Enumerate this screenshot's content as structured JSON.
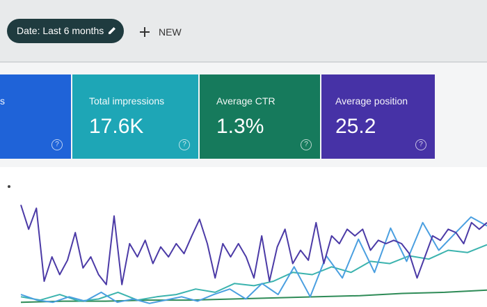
{
  "toolbar": {
    "date_chip": "Date: Last 6 months",
    "new_button": "NEW"
  },
  "metrics": [
    {
      "label": "s"
    },
    {
      "label": "Total impressions",
      "value": "17.6K"
    },
    {
      "label": "Average CTR",
      "value": "1.3%"
    },
    {
      "label": "Average position",
      "value": "25.2"
    }
  ],
  "chart_data": {
    "type": "line",
    "ylim": [
      0,
      100
    ],
    "series": [
      {
        "color": "#4b3aa6",
        "values": [
          91,
          69,
          88,
          22,
          44,
          28,
          41,
          66,
          34,
          44,
          28,
          19,
          81,
          19,
          56,
          44,
          59,
          38,
          53,
          44,
          56,
          47,
          63,
          78,
          56,
          25,
          56,
          44,
          56,
          44,
          25,
          63,
          22,
          53,
          69,
          38,
          50,
          41,
          75,
          38,
          63,
          56,
          69,
          63,
          69,
          50,
          59,
          56,
          59,
          56,
          47,
          25,
          44,
          63,
          59,
          69,
          66,
          56,
          75,
          69,
          75
        ]
      },
      {
        "color": "#4a9fe0",
        "values": [
          10,
          5,
          3,
          8,
          4,
          12,
          3,
          6,
          2,
          5,
          8,
          4,
          10,
          15,
          6,
          20,
          10,
          35,
          8,
          45,
          25,
          60,
          30,
          70,
          40,
          75,
          50,
          65,
          80,
          72
        ]
      },
      {
        "color": "#3bb3ae",
        "values": [
          8,
          5,
          10,
          4,
          6,
          12,
          5,
          8,
          10,
          15,
          12,
          20,
          18,
          22,
          30,
          28,
          35,
          30,
          40,
          38,
          45,
          42,
          50,
          48,
          55
        ]
      },
      {
        "color": "#2e8b57",
        "values": [
          3,
          4,
          4,
          5,
          5,
          6,
          7,
          8,
          9,
          11,
          12,
          14
        ]
      }
    ]
  }
}
